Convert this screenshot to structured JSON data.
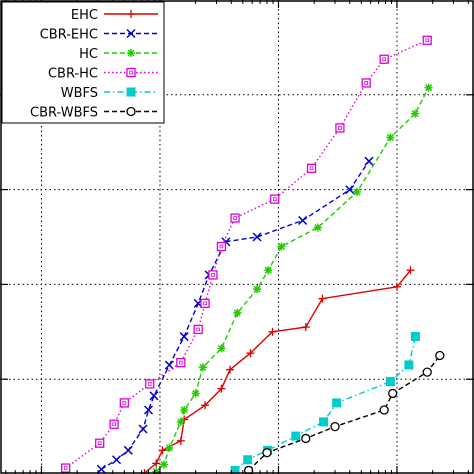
{
  "chart_data": {
    "type": "line",
    "xscale": "log",
    "yscale": "linear",
    "grid": true,
    "legend_position": "top-left",
    "series": [
      {
        "name": "EHC",
        "color": "#dd0000",
        "marker": "plus",
        "dash": "solid",
        "points": [
          [
            0.74,
            0.04
          ],
          [
            0.93,
            0.45
          ],
          [
            1.05,
            1.0
          ],
          [
            1.5,
            1.4
          ],
          [
            1.6,
            2.3
          ],
          [
            2.4,
            2.9
          ],
          [
            3.3,
            3.6
          ],
          [
            3.9,
            4.4
          ],
          [
            5.8,
            5.1
          ],
          [
            8.9,
            6.0
          ],
          [
            17,
            6.2
          ],
          [
            23.5,
            7.4
          ],
          [
            100,
            7.9
          ],
          [
            130,
            8.6
          ]
        ]
      },
      {
        "name": "CBR-EHC",
        "color": "#0000cc",
        "marker": "x",
        "dash": "dashed",
        "points": [
          [
            0.32,
            0.2
          ],
          [
            0.43,
            0.6
          ],
          [
            0.54,
            1.0
          ],
          [
            0.72,
            1.9
          ],
          [
            0.8,
            2.7
          ],
          [
            0.89,
            3.3
          ],
          [
            1.2,
            4.6
          ],
          [
            1.6,
            5.8
          ],
          [
            2.1,
            7.2
          ],
          [
            2.6,
            8.4
          ],
          [
            3.6,
            9.8
          ],
          [
            6.6,
            10.0
          ],
          [
            16,
            10.7
          ],
          [
            40,
            12.0
          ],
          [
            58,
            13.2
          ]
        ]
      },
      {
        "name": "HC",
        "color": "#22cc00",
        "marker": "star",
        "dash": "dashed",
        "points": [
          [
            0.93,
            0.1
          ],
          [
            1.08,
            0.4
          ],
          [
            1.2,
            1.1
          ],
          [
            1.5,
            2.2
          ],
          [
            1.6,
            2.7
          ],
          [
            2.0,
            3.4
          ],
          [
            2.3,
            4.5
          ],
          [
            3.3,
            5.3
          ],
          [
            4.5,
            6.8
          ],
          [
            6.6,
            7.8
          ],
          [
            8.2,
            8.6
          ],
          [
            10.6,
            9.6
          ],
          [
            21.5,
            10.4
          ],
          [
            46,
            11.9
          ],
          [
            88,
            14.2
          ],
          [
            142,
            15.2
          ],
          [
            185,
            16.3
          ]
        ]
      },
      {
        "name": "CBR-HC",
        "color": "#dd00dd",
        "marker": "square",
        "dash": "dotted",
        "points": [
          [
            0.16,
            0.25
          ],
          [
            0.31,
            1.3
          ],
          [
            0.41,
            2.1
          ],
          [
            0.5,
            3.0
          ],
          [
            0.82,
            3.8
          ],
          [
            1.5,
            4.7
          ],
          [
            2.1,
            6.1
          ],
          [
            2.4,
            7.2
          ],
          [
            2.8,
            8.4
          ],
          [
            3.3,
            9.6
          ],
          [
            4.3,
            10.8
          ],
          [
            9.3,
            11.6
          ],
          [
            19,
            12.9
          ],
          [
            33,
            14.6
          ],
          [
            55,
            16.5
          ],
          [
            78,
            17.5
          ],
          [
            180,
            18.3
          ]
        ]
      },
      {
        "name": "WBFS",
        "color": "#00cccc",
        "marker": "filled-square",
        "dash": "dashdot",
        "points": [
          [
            4.3,
            0.15
          ],
          [
            5.5,
            0.6
          ],
          [
            8.1,
            1.0
          ],
          [
            14,
            1.6
          ],
          [
            24,
            2.2
          ],
          [
            31,
            3.0
          ],
          [
            88,
            3.9
          ],
          [
            126,
            4.6
          ],
          [
            143,
            5.8
          ]
        ]
      },
      {
        "name": "CBR-WBFS",
        "color": "#000000",
        "marker": "circle",
        "dash": "dashed",
        "points": [
          [
            5.6,
            0.15
          ],
          [
            8.0,
            0.9
          ],
          [
            17,
            1.5
          ],
          [
            30,
            2.0
          ],
          [
            78,
            2.7
          ],
          [
            92,
            3.4
          ],
          [
            180,
            4.3
          ],
          [
            230,
            5.0
          ]
        ]
      }
    ]
  }
}
